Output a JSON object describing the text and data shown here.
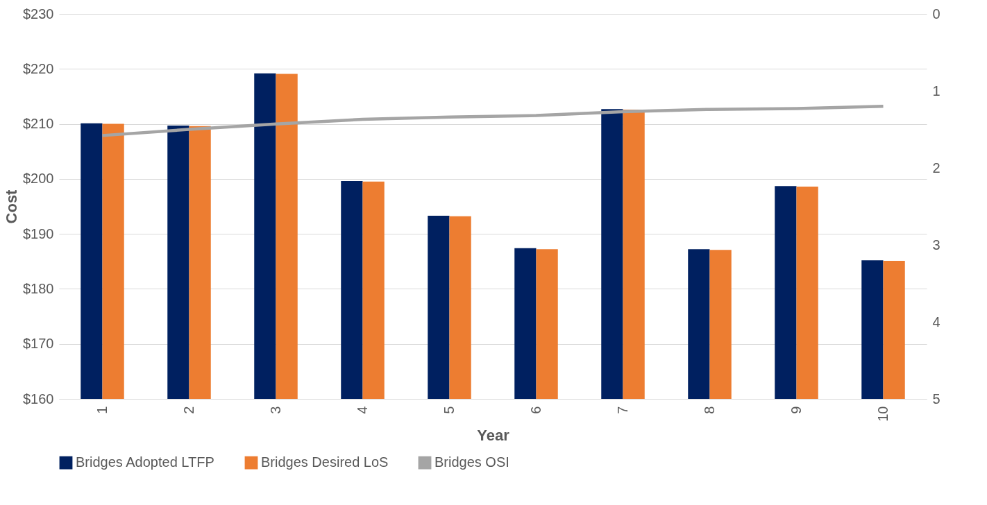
{
  "chart_data": {
    "type": "bar",
    "xlabel": "Year",
    "ylabel": "Cost",
    "categories": [
      "1",
      "2",
      "3",
      "4",
      "5",
      "6",
      "7",
      "8",
      "9",
      "10"
    ],
    "series": [
      {
        "name": "Bridges Adopted LTFP",
        "color": "#002060",
        "values": [
          210.1,
          209.7,
          219.2,
          199.6,
          193.3,
          187.4,
          212.7,
          187.2,
          198.7,
          185.2
        ]
      },
      {
        "name": "Bridges Desired LoS",
        "color": "#ed7d31",
        "values": [
          210.0,
          209.6,
          219.1,
          199.5,
          193.2,
          187.2,
          212.6,
          187.1,
          198.6,
          185.1
        ]
      },
      {
        "name": "Bridges OSI",
        "type": "line",
        "axis": "y2",
        "color": "#a5a5a5",
        "values": [
          1.58,
          1.5,
          1.43,
          1.37,
          1.34,
          1.32,
          1.27,
          1.24,
          1.23,
          1.2
        ]
      }
    ],
    "ylim": [
      160,
      230
    ],
    "yticks": [
      {
        "value": 160,
        "label": "$160"
      },
      {
        "value": 170,
        "label": "$170"
      },
      {
        "value": 180,
        "label": "$180"
      },
      {
        "value": 190,
        "label": "$190"
      },
      {
        "value": 200,
        "label": "$200"
      },
      {
        "value": 210,
        "label": "$210"
      },
      {
        "value": 220,
        "label": "$220"
      },
      {
        "value": 230,
        "label": "$230"
      }
    ],
    "y2lim": [
      5,
      0
    ],
    "y2ticks": [
      0,
      1,
      2,
      3,
      4,
      5
    ],
    "grid": "y",
    "legend": "bottom",
    "marker": "none",
    "line_style": "solid"
  }
}
